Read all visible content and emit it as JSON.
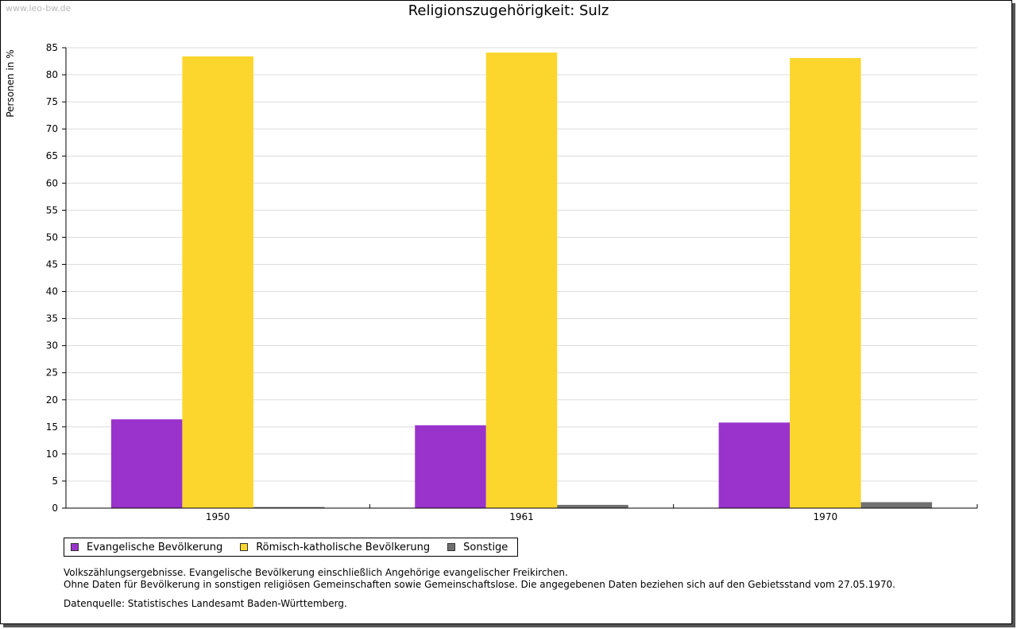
{
  "watermark": "www.leo-bw.de",
  "chart_data": {
    "type": "bar",
    "title": "Religionszugehörigkeit: Sulz",
    "xlabel": "",
    "ylabel": "Personen in %",
    "categories": [
      "1950",
      "1961",
      "1970"
    ],
    "series": [
      {
        "name": "Evangelische Bevölkerung",
        "color": "#9933CC",
        "values": [
          16.4,
          15.3,
          15.8
        ]
      },
      {
        "name": "Römisch-katholische Bevölkerung",
        "color": "#FCD62D",
        "values": [
          83.4,
          84.1,
          83.1
        ]
      },
      {
        "name": "Sonstige",
        "color": "#707070",
        "values": [
          0.2,
          0.6,
          1.1
        ]
      }
    ],
    "ylim": [
      0,
      85
    ],
    "yticks": [
      0,
      5,
      10,
      15,
      20,
      25,
      30,
      35,
      40,
      45,
      50,
      55,
      60,
      65,
      70,
      75,
      80,
      85
    ],
    "grid": true,
    "legend_position": "bottom-left"
  },
  "notes": [
    "Volkszählungsergebnisse. Evangelische Bevölkerung einschließlich Angehörige evangelischer Freikirchen.",
    "Ohne Daten für Bevölkerung in sonstigen religiösen Gemeinschaften sowie Gemeinschaftslose. Die angegebenen Daten beziehen sich auf den Gebietsstand vom 27.05.1970."
  ],
  "source": "Datenquelle: Statistisches Landesamt Baden-Württemberg."
}
